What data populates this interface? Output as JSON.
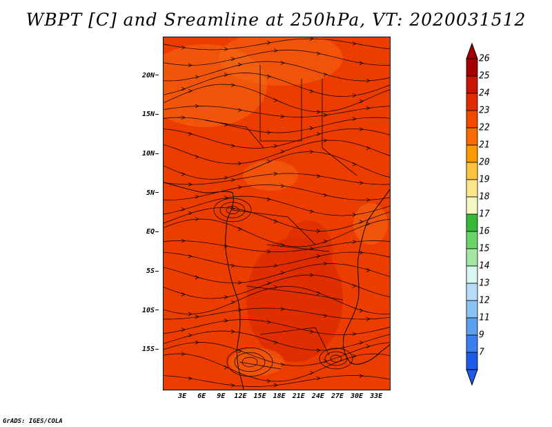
{
  "title": "WBPT [C] and Sreamline at 250hPa, VT: 2020031512",
  "y_axis": {
    "labels": [
      "20N",
      "15N",
      "10N",
      "5N",
      "EQ",
      "5S",
      "10S",
      "15S"
    ],
    "values": [
      20,
      15,
      10,
      5,
      0,
      -5,
      -10,
      -15
    ],
    "range": [
      -20,
      25
    ]
  },
  "x_axis": {
    "labels": [
      "3E",
      "6E",
      "9E",
      "12E",
      "15E",
      "18E",
      "21E",
      "24E",
      "27E",
      "30E",
      "33E"
    ],
    "values": [
      3,
      6,
      9,
      12,
      15,
      18,
      21,
      24,
      27,
      30,
      33
    ],
    "range": [
      0,
      35
    ]
  },
  "colorbar": {
    "labels": [
      "26",
      "25",
      "24",
      "23",
      "22",
      "21",
      "20",
      "19",
      "18",
      "17",
      "16",
      "15",
      "14",
      "13",
      "12",
      "11",
      "9",
      "7"
    ],
    "colors": [
      "#a50000",
      "#c81400",
      "#e02c00",
      "#f04a00",
      "#f76c00",
      "#fb9a00",
      "#fdc440",
      "#fee58c",
      "#f5f7c0",
      "#38b838",
      "#6ad46a",
      "#a4e8a4",
      "#d9f6f2",
      "#b8dcf8",
      "#8cc2f2",
      "#5c9ef0",
      "#3a7ef0",
      "#1e5ae8"
    ],
    "top_arrow_color": "#a50000",
    "bottom_arrow_color": "#1e5ae8"
  },
  "map_colors": {
    "base": "#ec3c00",
    "warm": "#dc2a00",
    "cool": "#f46a12"
  },
  "credit": "GrADS: IGES/COLA"
}
